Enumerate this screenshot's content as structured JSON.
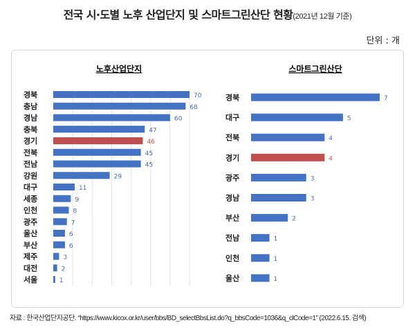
{
  "title": "전국 시·도별 노후 산업단지 및 스마트그린산단 현황",
  "subtitle": "(2021년 12월 기준)",
  "unit": "단위 : 개",
  "source": "자료 : 한국산업단지공단. “https://www.kicox.or.kr/user/bbs/BD_selectBbsList.do?q_bbsCode=1036&q_clCode=1” (2022.6.15. 검색)",
  "colors": {
    "bar": "#4472C4",
    "highlight": "#C0504D",
    "label": "#4A6BA8",
    "highlight_label": "#C0504D"
  },
  "chart_data": [
    {
      "type": "bar",
      "orientation": "horizontal",
      "title": "노후산업단지",
      "categories": [
        "경북",
        "충남",
        "경남",
        "충북",
        "경기",
        "전북",
        "전남",
        "강원",
        "대구",
        "세종",
        "인천",
        "광주",
        "울산",
        "부산",
        "제주",
        "대전",
        "서울"
      ],
      "values": [
        70,
        68,
        60,
        47,
        46,
        45,
        45,
        29,
        11,
        9,
        8,
        7,
        6,
        6,
        3,
        2,
        1
      ],
      "highlight": "경기",
      "xlim": [
        0,
        70
      ],
      "grid": true
    },
    {
      "type": "bar",
      "orientation": "horizontal",
      "title": "스마트그린산단",
      "categories": [
        "경북",
        "대구",
        "전북",
        "경기",
        "광주",
        "경남",
        "부산",
        "전남",
        "인천",
        "울산"
      ],
      "values": [
        7,
        5,
        4,
        4,
        3,
        3,
        2,
        1,
        1,
        1
      ],
      "highlight": "경기",
      "xlim": [
        0,
        7
      ],
      "grid": false
    }
  ]
}
